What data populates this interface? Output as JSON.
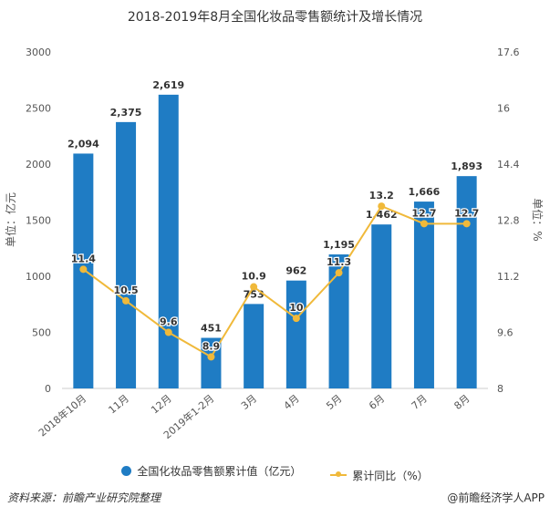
{
  "chart_data": {
    "type": "bar+line",
    "title": "2018-2019年8月全国化妆品零售额统计及增长情况",
    "categories": [
      "2018年10月",
      "11月",
      "12月",
      "2019年1-2月",
      "3月",
      "4月",
      "5月",
      "6月",
      "7月",
      "8月"
    ],
    "series": [
      {
        "name": "全国化妆品零售额累计值（亿元）",
        "type": "bar",
        "axis": "left",
        "color": "#1f7cc4",
        "values": [
          2094,
          2375,
          2619,
          451,
          753,
          962,
          1195,
          1462,
          1666,
          1893
        ],
        "labels": [
          "2,094",
          "2,375",
          "2,619",
          "451",
          "753",
          "962",
          "1,195",
          "1,462",
          "1,666",
          "1,893"
        ]
      },
      {
        "name": "累计同比（%）",
        "type": "line",
        "axis": "right",
        "color": "#f0b93a",
        "values": [
          11.4,
          10.5,
          9.6,
          8.9,
          10.9,
          10,
          11.3,
          13.2,
          12.7,
          12.7
        ],
        "labels": [
          "11.4",
          "10.5",
          "9.6",
          "8.9",
          "10.9",
          "10",
          "11.3",
          "13.2",
          "12.7",
          "12.7"
        ]
      }
    ],
    "ylabel": "单位：亿元",
    "y2label": "单位：%",
    "ylim": [
      0,
      3000
    ],
    "yticks": [
      "0",
      "500",
      "1000",
      "1500",
      "2000",
      "2500",
      "3000"
    ],
    "y2lim": [
      8,
      17.6
    ],
    "y2ticks": [
      "8",
      "9.6",
      "11.2",
      "12.8",
      "14.4",
      "16",
      "17.6"
    ],
    "grid": false,
    "legend": "bottom"
  },
  "source": "资料来源：前瞻产业研究院整理",
  "brand": "@前瞻经济学人APP"
}
